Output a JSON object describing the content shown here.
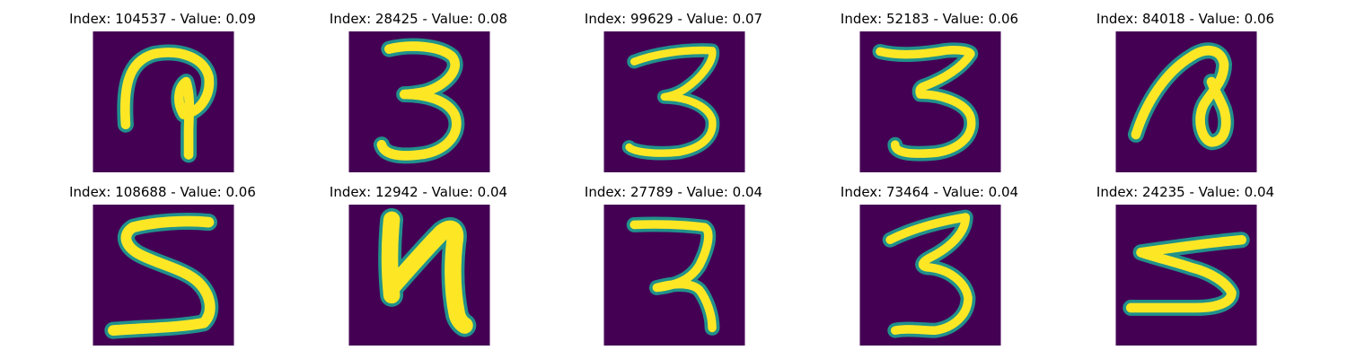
{
  "colors": {
    "background_tile": "#440154",
    "stroke_mid": "#21918c",
    "stroke_core": "#fde725"
  },
  "images": [
    {
      "title": "Index: 104537 - Value: 0.09",
      "digit_icon": "handwritten-loop-glyph-icon"
    },
    {
      "title": "Index: 28425 - Value: 0.08",
      "digit_icon": "handwritten-3-icon"
    },
    {
      "title": "Index: 99629 - Value: 0.07",
      "digit_icon": "handwritten-3-icon"
    },
    {
      "title": "Index: 52183 - Value: 0.06",
      "digit_icon": "handwritten-3-icon"
    },
    {
      "title": "Index: 84018 - Value: 0.06",
      "digit_icon": "handwritten-loop-glyph-icon"
    },
    {
      "title": "Index: 108688 - Value: 0.06",
      "digit_icon": "handwritten-5-icon"
    },
    {
      "title": "Index: 12942 - Value: 0.04",
      "digit_icon": "handwritten-4-icon"
    },
    {
      "title": "Index: 27789 - Value: 0.04",
      "digit_icon": "handwritten-7-icon"
    },
    {
      "title": "Index: 73464 - Value: 0.04",
      "digit_icon": "handwritten-3-icon"
    },
    {
      "title": "Index: 24235 - Value: 0.04",
      "digit_icon": "handwritten-5-icon"
    }
  ]
}
